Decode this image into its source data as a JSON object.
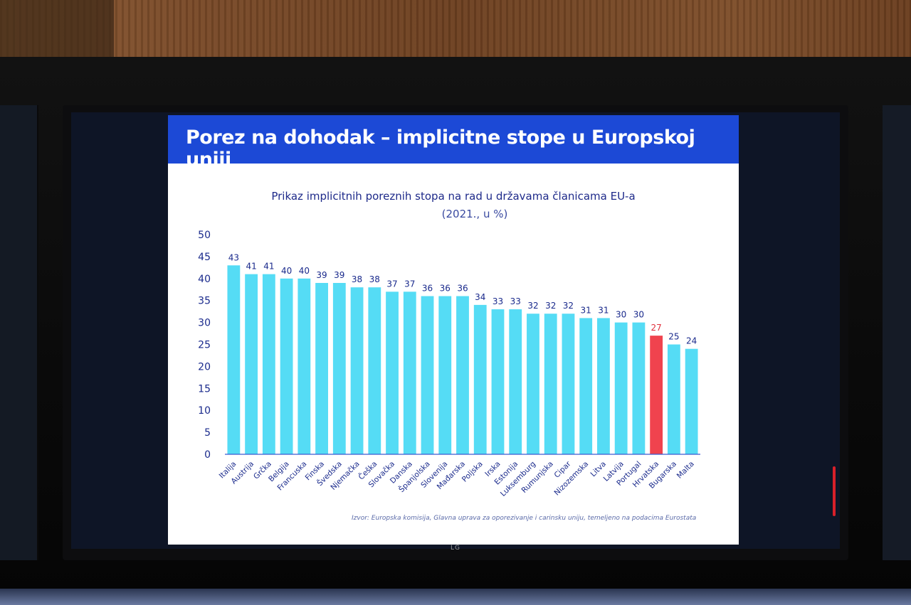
{
  "slide": {
    "title": "Porez na dohodak – implicitne stope u Europskoj uniji",
    "source": "Izvor: Europska komisija, Glavna uprava za oporezivanje i carinsku uniju, temeljeno na podacima Eurostata"
  },
  "monitor": {
    "brand": "LG"
  },
  "colors": {
    "header": "#1c49d6",
    "bar": "#55dcf5",
    "highlight": "#f0434e",
    "label": "#1a2a8c",
    "highlight_label": "#e0303c"
  },
  "chart_data": {
    "type": "bar",
    "title": "Prikaz implicitnih poreznih stopa na rad u državama članicama EU-a",
    "subtitle": "(2021., u %)",
    "xlabel": "",
    "ylabel": "",
    "ylim": [
      0,
      50
    ],
    "yticks": [
      0,
      5,
      10,
      15,
      20,
      25,
      30,
      35,
      40,
      45,
      50
    ],
    "grid": false,
    "highlight_category": "Hrvatska",
    "categories": [
      "Italija",
      "Austrija",
      "Grčka",
      "Belgija",
      "Francuska",
      "Finska",
      "Švedska",
      "Njemačka",
      "Češka",
      "Slovačka",
      "Danska",
      "Španjolska",
      "Slovenija",
      "Mađarska",
      "Poljska",
      "Irska",
      "Estonija",
      "Luksemburg",
      "Rumunjska",
      "Cipar",
      "Nizozemska",
      "Litva",
      "Latvija",
      "Portugal",
      "Hrvatska",
      "Bugarska",
      "Malta"
    ],
    "values": [
      43,
      41,
      41,
      40,
      40,
      39,
      39,
      38,
      38,
      37,
      37,
      36,
      36,
      36,
      34,
      33,
      33,
      32,
      32,
      32,
      31,
      31,
      30,
      30,
      27,
      25,
      24
    ],
    "labels": [
      "43",
      "41",
      "41",
      "40",
      "40",
      "39",
      "39",
      "38",
      "38",
      "37",
      "37",
      "36",
      "36",
      "36",
      "34",
      "33",
      "33",
      "32",
      "32",
      "32",
      "31",
      "31",
      "30",
      "30",
      "27",
      "25",
      "24"
    ]
  }
}
